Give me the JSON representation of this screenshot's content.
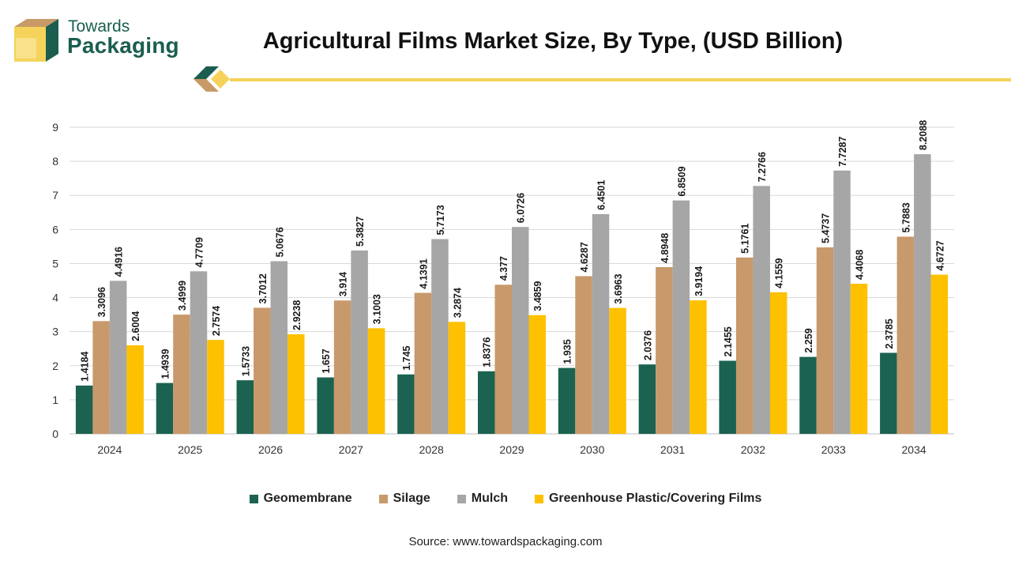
{
  "brand": {
    "line1": "Towards",
    "line2": "Packaging"
  },
  "colors": {
    "brand_green": "#1b5e50",
    "accent_yellow": "#f5d35a",
    "brand_tan": "#c79a68"
  },
  "source": "Source: www.towardspackaging.com",
  "chart_data": {
    "type": "bar",
    "title": "Agricultural Films Market Size, By Type, (USD Billion)",
    "xlabel": "",
    "ylabel": "",
    "ylim": [
      0,
      9
    ],
    "yticks": [
      "0",
      "1",
      "2",
      "3",
      "4",
      "5",
      "6",
      "7",
      "8",
      "9"
    ],
    "grid": true,
    "legend_position": "bottom",
    "categories": [
      "2024",
      "2025",
      "2026",
      "2027",
      "2028",
      "2029",
      "2030",
      "2031",
      "2032",
      "2033",
      "2034"
    ],
    "series": [
      {
        "name": "Geomembrane",
        "color": "#1b6251",
        "values": [
          1.4184,
          1.4939,
          1.5733,
          1.657,
          1.745,
          1.8376,
          1.935,
          2.0376,
          2.1455,
          2.259,
          2.3785
        ],
        "labels": [
          "1.4184",
          "1.4939",
          "1.5733",
          "1.657",
          "1.745",
          "1.8376",
          "1.935",
          "2.0376",
          "2.1455",
          "2.259",
          "2.3785"
        ]
      },
      {
        "name": "Silage",
        "color": "#c8996a",
        "values": [
          3.3096,
          3.4999,
          3.7012,
          3.914,
          4.1391,
          4.377,
          4.6287,
          4.8948,
          5.1761,
          5.4737,
          5.7883
        ],
        "labels": [
          "3.3096",
          "3.4999",
          "3.7012",
          "3.914",
          "4.1391",
          "4.377",
          "4.6287",
          "4.8948",
          "5.1761",
          "5.4737",
          "5.7883"
        ]
      },
      {
        "name": "Mulch",
        "color": "#a6a6a6",
        "values": [
          4.4916,
          4.7709,
          5.0676,
          5.3827,
          5.7173,
          6.0726,
          6.4501,
          6.8509,
          7.2766,
          7.7287,
          8.2088
        ],
        "labels": [
          "4.4916",
          "4.7709",
          "5.0676",
          "5.3827",
          "5.7173",
          "6.0726",
          "6.4501",
          "6.8509",
          "7.2766",
          "7.7287",
          "8.2088"
        ]
      },
      {
        "name": "Greenhouse Plastic/Covering Films",
        "color": "#fdc100",
        "values": [
          2.6004,
          2.7574,
          2.9238,
          3.1003,
          3.2874,
          3.4859,
          3.6963,
          3.9194,
          4.1559,
          4.4068,
          4.6727
        ],
        "labels": [
          "2.6004",
          "2.7574",
          "2.9238",
          "3.1003",
          "3.2874",
          "3.4859",
          "3.6963",
          "3.9194",
          "4.1559",
          "4.4068",
          "4.6727"
        ]
      }
    ]
  }
}
